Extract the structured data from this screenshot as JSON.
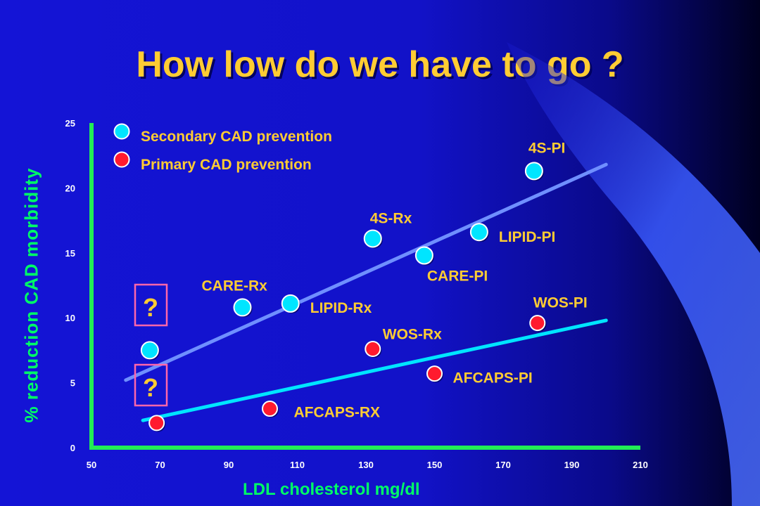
{
  "title": "How low do we have to go ?",
  "chart_data": {
    "type": "scatter",
    "xlabel": "LDL cholesterol mg/dl",
    "ylabel": "% reduction CAD morbidity",
    "xlim": [
      50,
      210
    ],
    "ylim": [
      0,
      25
    ],
    "xticks": [
      50,
      70,
      90,
      110,
      130,
      150,
      170,
      190,
      210
    ],
    "yticks": [
      0,
      5,
      10,
      15,
      20,
      25
    ],
    "colors": {
      "secondary": "#00e5ff",
      "primary": "#ff1a2e",
      "axis": "#22ee55",
      "label": "#ffcc33",
      "tick": "#ffffff"
    },
    "legend": [
      {
        "label": "Secondary CAD prevention",
        "group": "secondary"
      },
      {
        "label": "Primary CAD prevention",
        "group": "primary"
      }
    ],
    "series": [
      {
        "group": "secondary",
        "points": [
          {
            "label": "4S-PI",
            "x": 179,
            "y": 21.3
          },
          {
            "label": "4S-Rx",
            "x": 132,
            "y": 16.1
          },
          {
            "label": "LIPID-PI",
            "x": 163,
            "y": 16.6
          },
          {
            "label": "CARE-PI",
            "x": 147,
            "y": 14.8
          },
          {
            "label": "CARE-Rx",
            "x": 94,
            "y": 10.8
          },
          {
            "label": "LIPID-Rx",
            "x": 108,
            "y": 11.1
          },
          {
            "label": "",
            "x": 67,
            "y": 7.5
          }
        ],
        "trend": {
          "x": [
            60,
            200
          ],
          "y": [
            5.2,
            21.8
          ]
        }
      },
      {
        "group": "primary",
        "points": [
          {
            "label": "WOS-PI",
            "x": 180,
            "y": 9.6
          },
          {
            "label": "WOS-Rx",
            "x": 132,
            "y": 7.6
          },
          {
            "label": "AFCAPS-PI",
            "x": 150,
            "y": 5.7
          },
          {
            "label": "AFCAPS-RX",
            "x": 102,
            "y": 3.0
          },
          {
            "label": "",
            "x": 69,
            "y": 1.9
          }
        ],
        "trend": {
          "x": [
            65,
            200
          ],
          "y": [
            2.1,
            9.8
          ]
        }
      }
    ],
    "question_marks": [
      "?",
      "?"
    ]
  }
}
